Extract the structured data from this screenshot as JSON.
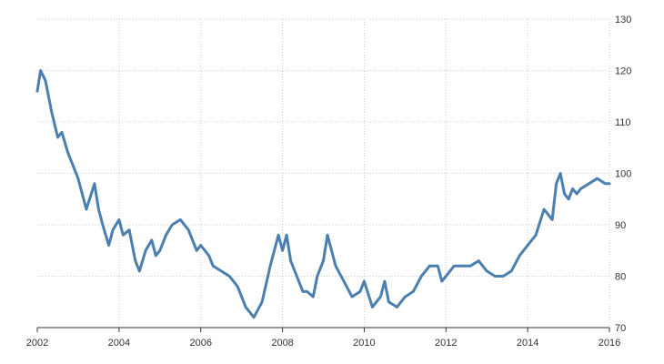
{
  "chart_data": {
    "type": "line",
    "title": "",
    "xlabel": "",
    "ylabel": "",
    "xlim": [
      2002,
      2016
    ],
    "ylim": [
      70,
      130
    ],
    "x_ticks": [
      "2002",
      "2004",
      "2006",
      "2008",
      "2010",
      "2012",
      "2014",
      "2016"
    ],
    "y_ticks": [
      "70",
      "80",
      "90",
      "100",
      "110",
      "120",
      "130"
    ],
    "grid": true,
    "y_axis_side": "right",
    "line_color": "#4a7fb0",
    "series": [
      {
        "x": [
          2002.0,
          2002.08,
          2002.2,
          2002.35,
          2002.5,
          2002.6,
          2002.75,
          2002.9,
          2003.0,
          2003.2,
          2003.4,
          2003.5,
          2003.6,
          2003.75,
          2003.85,
          2004.0,
          2004.1,
          2004.25,
          2004.4,
          2004.5,
          2004.65,
          2004.8,
          2004.9,
          2005.0,
          2005.15,
          2005.3,
          2005.5,
          2005.7,
          2005.9,
          2006.0,
          2006.2,
          2006.3,
          2006.5,
          2006.7,
          2006.9,
          2007.1,
          2007.3,
          2007.5,
          2007.7,
          2007.9,
          2008.0,
          2008.1,
          2008.2,
          2008.35,
          2008.5,
          2008.6,
          2008.75,
          2008.85,
          2009.0,
          2009.1,
          2009.3,
          2009.5,
          2009.7,
          2009.9,
          2010.0,
          2010.2,
          2010.4,
          2010.5,
          2010.6,
          2010.8,
          2011.0,
          2011.2,
          2011.4,
          2011.5,
          2011.6,
          2011.8,
          2011.9,
          2012.0,
          2012.2,
          2012.4,
          2012.6,
          2012.8,
          2013.0,
          2013.2,
          2013.4,
          2013.6,
          2013.8,
          2014.0,
          2014.2,
          2014.4,
          2014.5,
          2014.6,
          2014.7,
          2014.8,
          2014.9,
          2015.0,
          2015.1,
          2015.2,
          2015.3,
          2015.5,
          2015.7,
          2015.9,
          2016.0
        ],
        "values": [
          116,
          120,
          118,
          112,
          107,
          108,
          104,
          101,
          99,
          93,
          98,
          93,
          90,
          86,
          89,
          91,
          88,
          89,
          83,
          81,
          85,
          87,
          84,
          85,
          88,
          90,
          91,
          89,
          85,
          86,
          84,
          82,
          81,
          80,
          78,
          74,
          72,
          75,
          82,
          88,
          85,
          88,
          83,
          80,
          77,
          77,
          76,
          80,
          83,
          88,
          82,
          79,
          76,
          77,
          79,
          74,
          76,
          79,
          75,
          74,
          76,
          77,
          80,
          81,
          82,
          82,
          79,
          80,
          82,
          82,
          82,
          83,
          81,
          80,
          80,
          81,
          84,
          86,
          88,
          93,
          92,
          91,
          98,
          100,
          96,
          95,
          97,
          96,
          97,
          98,
          99,
          98,
          98
        ]
      }
    ]
  }
}
